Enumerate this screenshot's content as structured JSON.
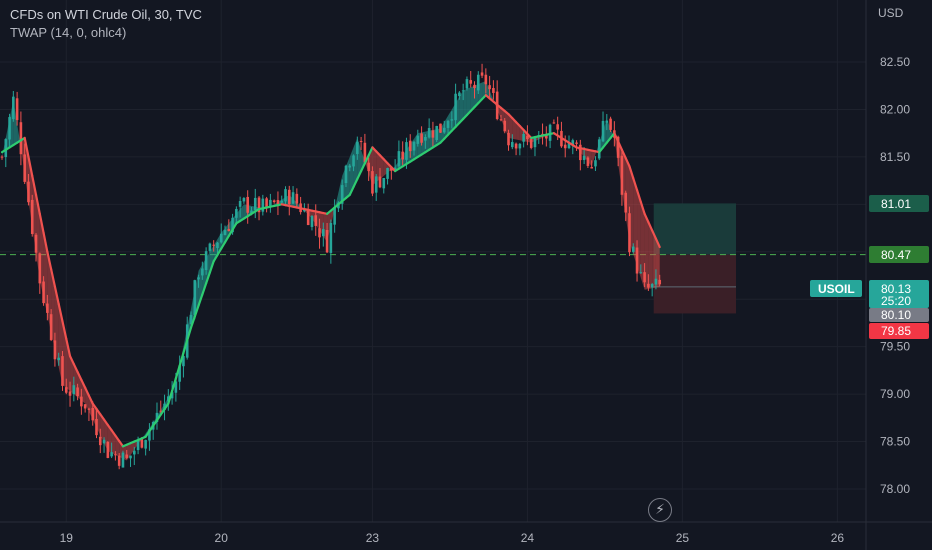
{
  "legend": {
    "symbol_line": "CFDs on WTI Crude Oil, 30, TVC",
    "indicator_line": "TWAP (14, 0, ohlc4)"
  },
  "price_axis": {
    "currency": "USD",
    "ticks": [
      "82.50",
      "82.00",
      "81.50",
      "81.00",
      "80.50",
      "80.00",
      "79.50",
      "79.00",
      "78.50",
      "78.00"
    ]
  },
  "time_axis": {
    "ticks": [
      "19",
      "20",
      "23",
      "24",
      "25",
      "26"
    ]
  },
  "tags": {
    "target": "81.01",
    "entry": "80.47",
    "symbol": "USOIL",
    "last_price": "80.13",
    "countdown": "25:20",
    "bid": "80.10",
    "stop": "79.85"
  },
  "icons": {
    "flash": "lightning-icon"
  },
  "colors": {
    "up": "#26a69a",
    "down": "#ef5350",
    "twap_up": "#2ecc71",
    "twap_down": "#f0524f",
    "entry_line": "#4caf50",
    "target_zone": "#1a3b3a",
    "stop_zone": "#3a1f27"
  },
  "chart_data": {
    "type": "candlestick",
    "title": "CFDs on WTI Crude Oil, 30, TVC",
    "ylim": [
      77.6,
      82.9
    ],
    "y_ticks": [
      78.0,
      78.5,
      79.0,
      79.5,
      80.0,
      80.5,
      81.0,
      81.5,
      82.0,
      82.5
    ],
    "x_ticks": [
      "19",
      "20",
      "23",
      "24",
      "25",
      "26"
    ],
    "price_path": [
      {
        "i": 0,
        "p": 81.5
      },
      {
        "i": 3,
        "p": 82.1
      },
      {
        "i": 5,
        "p": 81.6
      },
      {
        "i": 10,
        "p": 80.2
      },
      {
        "i": 16,
        "p": 79.1
      },
      {
        "i": 22,
        "p": 78.9
      },
      {
        "i": 28,
        "p": 78.4
      },
      {
        "i": 33,
        "p": 78.3
      },
      {
        "i": 40,
        "p": 78.7
      },
      {
        "i": 46,
        "p": 79.1
      },
      {
        "i": 52,
        "p": 80.3
      },
      {
        "i": 58,
        "p": 80.7
      },
      {
        "i": 64,
        "p": 81.0
      },
      {
        "i": 70,
        "p": 80.95
      },
      {
        "i": 76,
        "p": 81.1
      },
      {
        "i": 82,
        "p": 80.85
      },
      {
        "i": 86,
        "p": 80.6
      },
      {
        "i": 90,
        "p": 81.3
      },
      {
        "i": 94,
        "p": 81.7
      },
      {
        "i": 98,
        "p": 81.2
      },
      {
        "i": 104,
        "p": 81.4
      },
      {
        "i": 110,
        "p": 81.75
      },
      {
        "i": 116,
        "p": 81.8
      },
      {
        "i": 122,
        "p": 82.2
      },
      {
        "i": 128,
        "p": 82.3
      },
      {
        "i": 134,
        "p": 81.7
      },
      {
        "i": 140,
        "p": 81.65
      },
      {
        "i": 146,
        "p": 81.75
      },
      {
        "i": 152,
        "p": 81.6
      },
      {
        "i": 156,
        "p": 81.4
      },
      {
        "i": 160,
        "p": 81.9
      },
      {
        "i": 162,
        "p": 81.7
      },
      {
        "i": 166,
        "p": 80.6
      },
      {
        "i": 170,
        "p": 80.1
      },
      {
        "i": 174,
        "p": 80.13
      }
    ],
    "twap_path": [
      {
        "i": 0,
        "p": 81.55
      },
      {
        "i": 6,
        "p": 81.7
      },
      {
        "i": 12,
        "p": 80.5
      },
      {
        "i": 18,
        "p": 79.4
      },
      {
        "i": 24,
        "p": 78.9
      },
      {
        "i": 32,
        "p": 78.45
      },
      {
        "i": 38,
        "p": 78.55
      },
      {
        "i": 44,
        "p": 78.9
      },
      {
        "i": 50,
        "p": 79.7
      },
      {
        "i": 56,
        "p": 80.4
      },
      {
        "i": 62,
        "p": 80.8
      },
      {
        "i": 68,
        "p": 80.95
      },
      {
        "i": 74,
        "p": 81.0
      },
      {
        "i": 80,
        "p": 80.95
      },
      {
        "i": 86,
        "p": 80.9
      },
      {
        "i": 92,
        "p": 81.1
      },
      {
        "i": 98,
        "p": 81.6
      },
      {
        "i": 104,
        "p": 81.35
      },
      {
        "i": 110,
        "p": 81.5
      },
      {
        "i": 116,
        "p": 81.65
      },
      {
        "i": 122,
        "p": 81.9
      },
      {
        "i": 128,
        "p": 82.15
      },
      {
        "i": 134,
        "p": 81.95
      },
      {
        "i": 140,
        "p": 81.7
      },
      {
        "i": 146,
        "p": 81.75
      },
      {
        "i": 152,
        "p": 81.6
      },
      {
        "i": 158,
        "p": 81.55
      },
      {
        "i": 162,
        "p": 81.75
      },
      {
        "i": 166,
        "p": 81.4
      },
      {
        "i": 170,
        "p": 80.9
      },
      {
        "i": 174,
        "p": 80.55
      }
    ],
    "last_index": 174,
    "entry_price": 80.47,
    "target_price": 81.01,
    "stop_price": 79.85,
    "last_price": 80.13,
    "bid_price": 80.1
  }
}
